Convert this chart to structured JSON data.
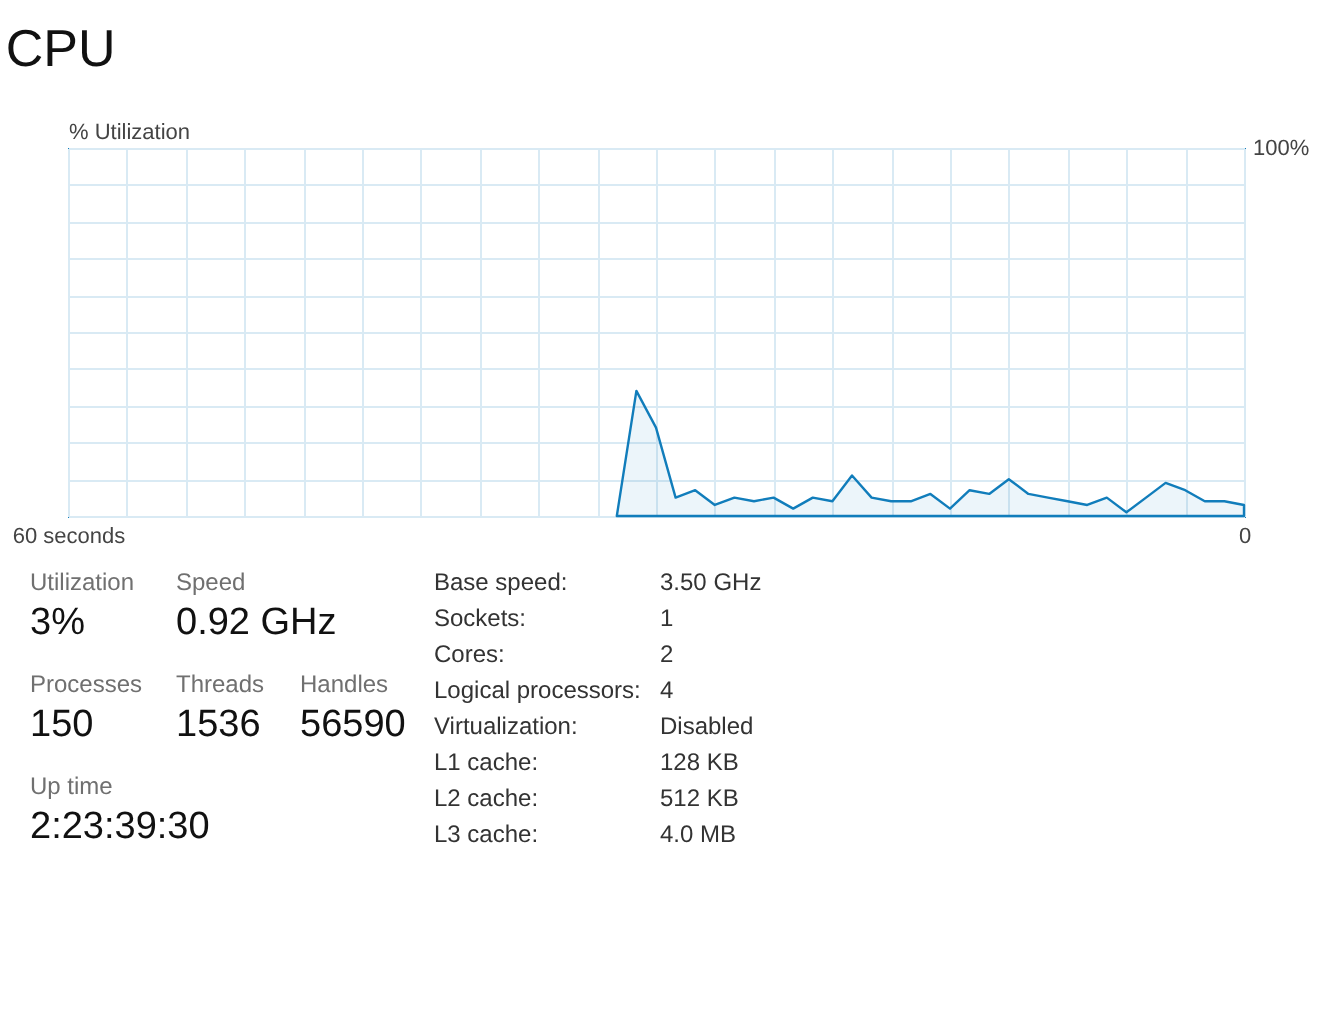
{
  "chart_data": [
    {
      "type": "area",
      "title": "CPU",
      "ylabel": "% Utilization",
      "x": [
        32,
        31,
        30,
        29,
        28,
        27,
        26,
        25,
        24,
        23,
        22,
        21,
        20,
        19,
        18,
        17,
        16,
        15,
        14,
        13,
        12,
        11,
        10,
        9,
        8,
        7,
        6,
        5,
        4,
        3,
        2,
        1,
        0
      ],
      "series": [
        {
          "color": "#117dbb",
          "values": [
            0,
            34,
            24,
            5,
            7,
            3,
            5,
            4,
            5,
            2,
            5,
            4,
            11,
            5,
            4,
            4,
            6,
            2,
            7,
            6,
            10,
            6,
            5,
            4,
            3,
            5,
            1,
            5,
            9,
            7,
            4,
            4,
            3
          ]
        }
      ],
      "xlim": [
        60,
        0
      ],
      "xticks": [
        {
          "value": 60,
          "label": "60 seconds"
        },
        {
          "value": 57,
          "label": null
        },
        {
          "value": 54,
          "label": null
        },
        {
          "value": 51,
          "label": null
        },
        {
          "value": 48,
          "label": null
        },
        {
          "value": 45,
          "label": null
        },
        {
          "value": 42,
          "label": null
        },
        {
          "value": 39,
          "label": null
        },
        {
          "value": 36,
          "label": null
        },
        {
          "value": 33,
          "label": null
        },
        {
          "value": 30,
          "label": null
        },
        {
          "value": 27,
          "label": null
        },
        {
          "value": 24,
          "label": null
        },
        {
          "value": 21,
          "label": null
        },
        {
          "value": 18,
          "label": null
        },
        {
          "value": 15,
          "label": null
        },
        {
          "value": 12,
          "label": null
        },
        {
          "value": 9,
          "label": null
        },
        {
          "value": 6,
          "label": null
        },
        {
          "value": 3,
          "label": null
        },
        {
          "value": 0,
          "label": "0"
        }
      ],
      "ylim": [
        0,
        100
      ],
      "yticks": [
        {
          "value": 0,
          "label": null
        },
        {
          "value": 10,
          "label": null
        },
        {
          "value": 20,
          "label": null
        },
        {
          "value": 30,
          "label": null
        },
        {
          "value": 40,
          "label": null
        },
        {
          "value": 50,
          "label": null
        },
        {
          "value": 60,
          "label": null
        },
        {
          "value": 70,
          "label": null
        },
        {
          "value": 80,
          "label": null
        },
        {
          "value": 90,
          "label": null
        },
        {
          "value": 100,
          "label": "100%"
        }
      ],
      "grid": true
    },
    {
      "type": "other",
      "annotations": [
        "Utilization",
        "3%",
        "Speed",
        "0.92 GHz",
        "Processes",
        "150",
        "Threads",
        "1536",
        "Handles",
        "56590",
        "Up time",
        "2:23:39:30",
        "Base speed:",
        "3.50 GHz",
        "Sockets:",
        "1",
        "Cores:",
        "2",
        "Logical processors:",
        "4",
        "Virtualization:",
        "Disabled",
        "L1 cache:",
        "128 KB",
        "L2 cache:",
        "512 KB",
        "L3 cache:",
        "4.0 MB"
      ]
    }
  ]
}
